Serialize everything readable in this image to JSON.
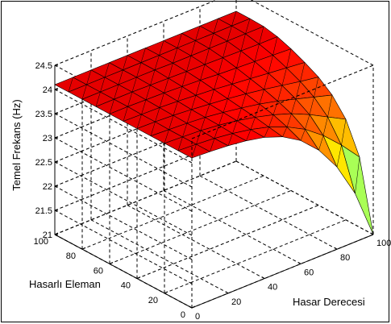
{
  "chart_data": {
    "type": "surface",
    "zlabel": "Temel Frekans (Hz)",
    "xlabel": "Hasar Derecesi",
    "ylabel": "Hasarlı Eleman",
    "xlim": [
      0,
      100
    ],
    "ylim": [
      0,
      100
    ],
    "zlim": [
      21,
      24.5
    ],
    "x_ticks": [
      "0",
      "20",
      "40",
      "60",
      "80",
      "100"
    ],
    "y_ticks": [
      "0",
      "20",
      "40",
      "60",
      "80",
      "100"
    ],
    "z_ticks": [
      "21",
      "21.5",
      "22",
      "22.5",
      "23",
      "23.5",
      "24",
      "24.5"
    ],
    "x_values": [
      0,
      10,
      20,
      30,
      40,
      50,
      60,
      70,
      80,
      90,
      100
    ],
    "y_values": [
      0,
      10,
      20,
      30,
      40,
      50,
      60,
      70,
      80,
      90,
      100
    ],
    "z_grid": [
      [
        24.1,
        24.08,
        24.05,
        24.0,
        23.92,
        23.78,
        23.55,
        23.2,
        22.7,
        22.0,
        21.0
      ],
      [
        24.1,
        24.08,
        24.05,
        24.0,
        23.93,
        23.83,
        23.68,
        23.48,
        23.2,
        22.85,
        22.45
      ],
      [
        24.1,
        24.08,
        24.06,
        24.02,
        23.96,
        23.88,
        23.78,
        23.65,
        23.48,
        23.28,
        23.08
      ],
      [
        24.1,
        24.08,
        24.06,
        24.03,
        23.98,
        23.92,
        23.85,
        23.76,
        23.65,
        23.54,
        23.43
      ],
      [
        24.1,
        24.09,
        24.07,
        24.04,
        24.0,
        23.96,
        23.91,
        23.85,
        23.78,
        23.71,
        23.65
      ],
      [
        24.1,
        24.09,
        24.08,
        24.06,
        24.03,
        24.0,
        23.96,
        23.92,
        23.88,
        23.84,
        23.8
      ],
      [
        24.1,
        24.1,
        24.09,
        24.08,
        24.06,
        24.04,
        24.01,
        23.99,
        23.97,
        23.95,
        23.93
      ],
      [
        24.1,
        24.1,
        24.1,
        24.09,
        24.08,
        24.07,
        24.06,
        24.05,
        24.04,
        24.03,
        24.03
      ],
      [
        24.1,
        24.1,
        24.1,
        24.1,
        24.1,
        24.09,
        24.09,
        24.09,
        24.09,
        24.09,
        24.09
      ],
      [
        24.1,
        24.1,
        24.1,
        24.1,
        24.1,
        24.1,
        24.1,
        24.1,
        24.1,
        24.1,
        24.1
      ],
      [
        24.1,
        24.1,
        24.1,
        24.1,
        24.1,
        24.1,
        24.1,
        24.1,
        24.1,
        24.1,
        24.1
      ]
    ],
    "colormap": "jet",
    "grid": true,
    "box": true
  }
}
